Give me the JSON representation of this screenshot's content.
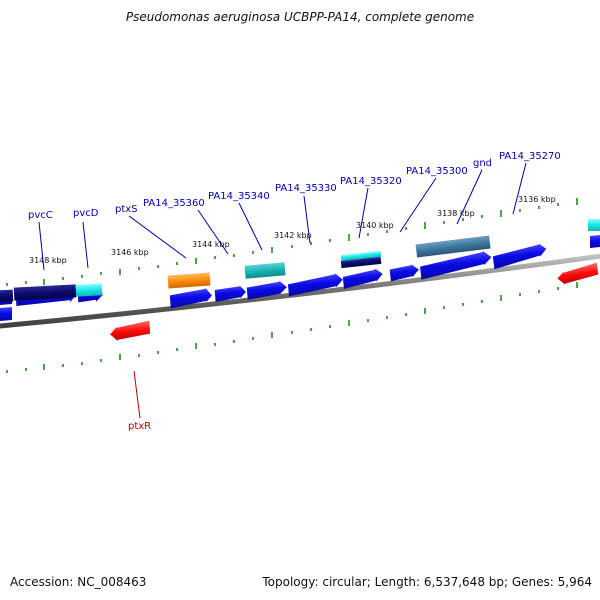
{
  "title": "Pseudomonas aeruginosa UCBPP-PA14, complete genome",
  "footer": {
    "accession": "Accession: NC_008463",
    "summary": "Topology: circular; Length: 6,537,648 bp; Genes: 5,964"
  },
  "scale_labels": [
    "3148 kbp",
    "3146 kbp",
    "3144 kbp",
    "3142 kbp",
    "3140 kbp",
    "3138 kbp",
    "3136 kbp"
  ],
  "gene_labels": [
    "pvcC",
    "pvcD",
    "ptxS",
    "PA14_35360",
    "PA14_35340",
    "PA14_35330",
    "PA14_35320",
    "PA14_35300",
    "gnd",
    "PA14_35270",
    "ptxR"
  ],
  "colors": {
    "label_blue": "#0000b4",
    "label_red": "#c00000",
    "cds_blue": "#0a0ae6",
    "dark_navy": "#0a0a6e",
    "cyan": "#19e6e6",
    "teal": "#19b4b4",
    "orange": "#ff8c0a",
    "steel_blue": "#3c78a0",
    "red": "#ff0a0a",
    "tick_green": "#1e8c1e"
  }
}
